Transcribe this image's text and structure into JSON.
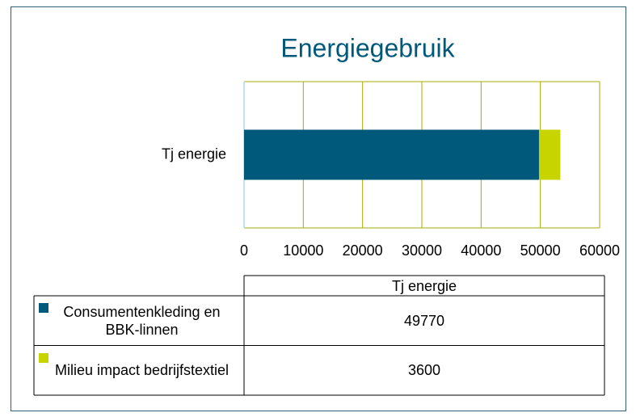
{
  "chart_data": {
    "type": "stacked_bar_horizontal",
    "title": "Energiegebruik",
    "categories": [
      "Tj energie"
    ],
    "series": [
      {
        "name": "Consumentenkleding en BBK-linnen",
        "color": "#00587a",
        "values": [
          49770
        ]
      },
      {
        "name": "Milieu impact bedrijfstextiel",
        "color": "#c8d400",
        "values": [
          3600
        ]
      }
    ],
    "xlim": [
      0,
      60000
    ],
    "xticks": [
      0,
      10000,
      20000,
      30000,
      40000,
      50000,
      60000
    ],
    "grid": true
  }
}
